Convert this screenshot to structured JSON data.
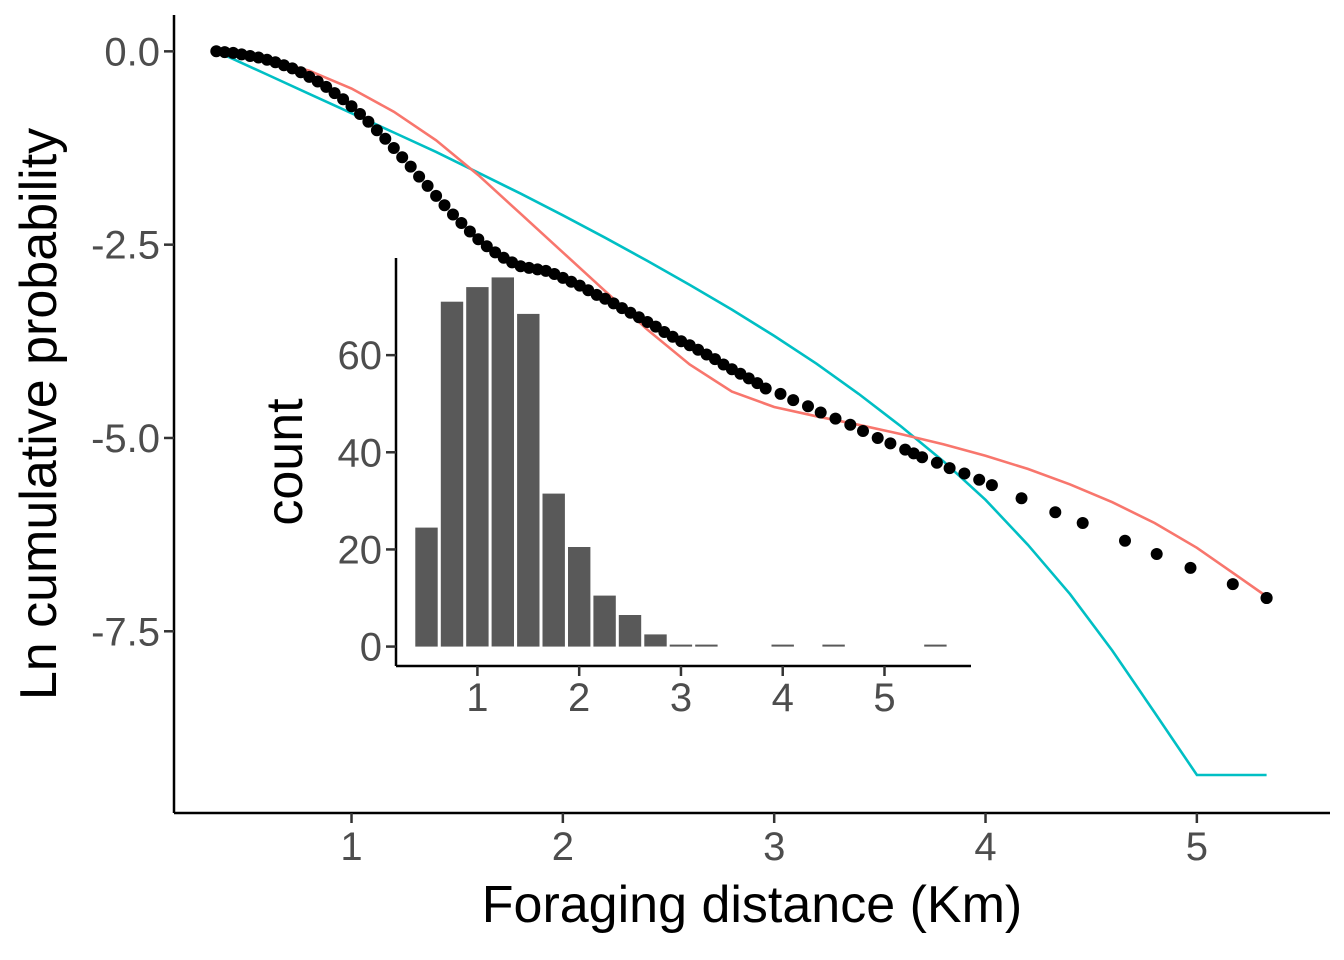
{
  "chart_data": [
    {
      "type": "scatter",
      "xlabel": "Foraging distance (Km)",
      "ylabel": "Ln cumulative probability",
      "xlim": [
        0.16,
        5.63
      ],
      "ylim": [
        -9.85,
        0.47
      ],
      "x_ticks": [
        1,
        2,
        3,
        4,
        5
      ],
      "x_tick_labels": [
        "1",
        "2",
        "3",
        "4",
        "5"
      ],
      "y_ticks": [
        0,
        -2.5,
        -5,
        -7.5
      ],
      "y_tick_labels": [
        "0.0",
        "-2.5",
        "-5.0",
        "-7.5"
      ],
      "grid": false,
      "colors": {
        "points": "#000000",
        "fit_red": "#F8766D",
        "fit_cyan": "#00BFC4"
      },
      "points": {
        "x": [
          0.36,
          0.4,
          0.44,
          0.48,
          0.52,
          0.56,
          0.6,
          0.64,
          0.68,
          0.72,
          0.76,
          0.8,
          0.84,
          0.88,
          0.92,
          0.96,
          1.0,
          1.04,
          1.08,
          1.12,
          1.16,
          1.2,
          1.24,
          1.28,
          1.32,
          1.36,
          1.4,
          1.44,
          1.48,
          1.52,
          1.56,
          1.6,
          1.64,
          1.68,
          1.72,
          1.76,
          1.8,
          1.84,
          1.88,
          1.92,
          1.96,
          2.0,
          2.04,
          2.08,
          2.12,
          2.16,
          2.2,
          2.24,
          2.28,
          2.32,
          2.36,
          2.4,
          2.44,
          2.48,
          2.52,
          2.56,
          2.6,
          2.64,
          2.68,
          2.72,
          2.76,
          2.8,
          2.84,
          2.88,
          2.92,
          2.96,
          3.03,
          3.09,
          3.16,
          3.22,
          3.29,
          3.36,
          3.42,
          3.49,
          3.55,
          3.62,
          3.66,
          3.7,
          3.77,
          3.83,
          3.9,
          3.97,
          4.03,
          4.17,
          4.33,
          4.46,
          4.66,
          4.81,
          4.97,
          5.17,
          5.33,
          5.33
        ],
        "y": [
          0.0,
          -0.01,
          -0.02,
          -0.04,
          -0.06,
          -0.08,
          -0.11,
          -0.14,
          -0.18,
          -0.22,
          -0.27,
          -0.33,
          -0.39,
          -0.46,
          -0.54,
          -0.62,
          -0.71,
          -0.81,
          -0.91,
          -1.02,
          -1.13,
          -1.25,
          -1.37,
          -1.49,
          -1.62,
          -1.74,
          -1.87,
          -1.99,
          -2.11,
          -2.22,
          -2.33,
          -2.43,
          -2.52,
          -2.6,
          -2.67,
          -2.73,
          -2.78,
          -2.8,
          -2.82,
          -2.84,
          -2.88,
          -2.93,
          -2.98,
          -3.03,
          -3.09,
          -3.15,
          -3.2,
          -3.26,
          -3.32,
          -3.38,
          -3.44,
          -3.5,
          -3.56,
          -3.63,
          -3.69,
          -3.75,
          -3.8,
          -3.86,
          -3.92,
          -3.98,
          -4.05,
          -4.11,
          -4.17,
          -4.23,
          -4.29,
          -4.36,
          -4.43,
          -4.51,
          -4.59,
          -4.67,
          -4.75,
          -4.83,
          -4.91,
          -5.0,
          -5.07,
          -5.15,
          -5.2,
          -5.25,
          -5.32,
          -5.39,
          -5.46,
          -5.54,
          -5.61,
          -5.78,
          -5.96,
          -6.1,
          -6.33,
          -6.5,
          -6.68,
          -6.89,
          -7.07,
          -7.07
        ]
      },
      "fit_red": {
        "x": [
          0.4,
          0.6,
          0.8,
          1.0,
          1.2,
          1.4,
          1.6,
          1.8,
          2.0,
          2.2,
          2.4,
          2.6,
          2.8,
          3.0,
          3.2,
          3.4,
          3.6,
          3.8,
          4.0,
          4.2,
          4.4,
          4.6,
          4.8,
          5.0,
          5.2,
          5.33
        ],
        "y": [
          0.0,
          -0.1,
          -0.25,
          -0.48,
          -0.78,
          -1.15,
          -1.6,
          -2.1,
          -2.6,
          -3.1,
          -3.6,
          -4.05,
          -4.4,
          -4.6,
          -4.72,
          -4.83,
          -4.95,
          -5.08,
          -5.23,
          -5.4,
          -5.6,
          -5.83,
          -6.1,
          -6.42,
          -6.8,
          -7.05
        ]
      },
      "fit_cyan": {
        "x": [
          0.36,
          0.6,
          0.8,
          1.0,
          1.2,
          1.4,
          1.6,
          1.8,
          2.0,
          2.2,
          2.4,
          2.6,
          2.8,
          3.0,
          3.2,
          3.4,
          3.6,
          3.8,
          4.0,
          4.2,
          4.4,
          4.6,
          4.8,
          5.0,
          5.2,
          5.33
        ],
        "y": [
          0.0,
          -0.3,
          -0.55,
          -0.8,
          -1.05,
          -1.3,
          -1.57,
          -1.84,
          -2.12,
          -2.41,
          -2.71,
          -3.02,
          -3.34,
          -3.68,
          -4.04,
          -4.43,
          -4.85,
          -5.3,
          -5.8,
          -6.38,
          -7.02,
          -7.75,
          -8.55,
          -9.4,
          -10.3,
          -10.95
        ]
      }
    },
    {
      "type": "bar",
      "xlabel": "",
      "ylabel": "count",
      "xlim": [
        0.2,
        5.85
      ],
      "ylim": [
        -4,
        80
      ],
      "x_ticks": [
        1,
        2,
        3,
        4,
        5
      ],
      "x_tick_labels": [
        "1",
        "2",
        "3",
        "4",
        "5"
      ],
      "y_ticks": [
        0,
        20,
        40,
        60
      ],
      "y_tick_labels": [
        "0",
        "20",
        "40",
        "60"
      ],
      "bin_width": 0.25,
      "bin_centers": [
        0.5,
        0.75,
        1.0,
        1.25,
        1.5,
        1.75,
        2.0,
        2.25,
        2.5,
        2.75,
        3.0,
        3.25,
        3.5,
        3.75,
        4.0,
        4.25,
        4.5,
        4.75,
        5.0,
        5.25,
        5.5
      ],
      "values": [
        24.5,
        71,
        74,
        76,
        68.5,
        31.5,
        20.5,
        10.5,
        6.5,
        2.5,
        0.3,
        0.3,
        0,
        0,
        0.3,
        0,
        0.3,
        0,
        0,
        0,
        0.3
      ],
      "bar_color": "#595959"
    }
  ]
}
